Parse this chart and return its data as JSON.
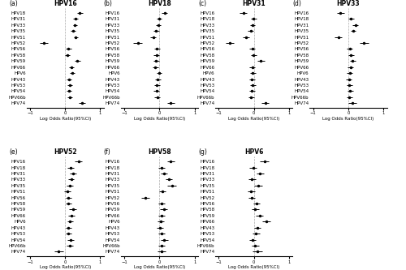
{
  "panels": [
    {
      "label": "(a)",
      "title": "HPV16",
      "data": [
        {
          "y": "HPV18",
          "mean": 0.42,
          "lo": 0.35,
          "hi": 0.5
        },
        {
          "y": "HPV31",
          "mean": 0.3,
          "lo": 0.23,
          "hi": 0.37
        },
        {
          "y": "HPV33",
          "mean": 0.28,
          "lo": 0.22,
          "hi": 0.34
        },
        {
          "y": "HPV35",
          "mean": 0.22,
          "lo": 0.15,
          "hi": 0.29
        },
        {
          "y": "HPV51",
          "mean": 0.3,
          "lo": 0.24,
          "hi": 0.36
        },
        {
          "y": "HPV52",
          "mean": -0.6,
          "lo": -0.72,
          "hi": -0.48
        },
        {
          "y": "HPV56",
          "mean": 0.1,
          "lo": 0.03,
          "hi": 0.17
        },
        {
          "y": "HPV58",
          "mean": 0.07,
          "lo": 0.0,
          "hi": 0.14
        },
        {
          "y": "HPV59",
          "mean": 0.35,
          "lo": 0.27,
          "hi": 0.43
        },
        {
          "y": "HPV66",
          "mean": 0.18,
          "lo": 0.11,
          "hi": 0.25
        },
        {
          "y": "HPV6",
          "mean": 0.2,
          "lo": 0.13,
          "hi": 0.27
        },
        {
          "y": "HPV43",
          "mean": 0.12,
          "lo": 0.05,
          "hi": 0.19
        },
        {
          "y": "HPV53",
          "mean": 0.14,
          "lo": 0.07,
          "hi": 0.21
        },
        {
          "y": "HPV54",
          "mean": 0.11,
          "lo": 0.04,
          "hi": 0.18
        },
        {
          "y": "HPV66b",
          "mean": 0.14,
          "lo": 0.07,
          "hi": 0.21
        },
        {
          "y": "HPV74",
          "mean": 0.48,
          "lo": 0.38,
          "hi": 0.58
        }
      ]
    },
    {
      "label": "(b)",
      "title": "HPV18",
      "data": [
        {
          "y": "HPV16",
          "mean": 0.15,
          "lo": 0.07,
          "hi": 0.23
        },
        {
          "y": "HPV31",
          "mean": -0.01,
          "lo": -0.09,
          "hi": 0.07
        },
        {
          "y": "HPV33",
          "mean": -0.04,
          "lo": -0.11,
          "hi": 0.03
        },
        {
          "y": "HPV35",
          "mean": -0.1,
          "lo": -0.18,
          "hi": -0.02
        },
        {
          "y": "HPV51",
          "mean": -0.18,
          "lo": -0.26,
          "hi": -0.1
        },
        {
          "y": "HPV52",
          "mean": -0.62,
          "lo": -0.74,
          "hi": -0.5
        },
        {
          "y": "HPV56",
          "mean": -0.07,
          "lo": -0.15,
          "hi": 0.01
        },
        {
          "y": "HPV58",
          "mean": -0.08,
          "lo": -0.16,
          "hi": 0.0
        },
        {
          "y": "HPV59",
          "mean": -0.1,
          "lo": -0.18,
          "hi": -0.02
        },
        {
          "y": "HPV66",
          "mean": -0.12,
          "lo": -0.2,
          "hi": -0.04
        },
        {
          "y": "HPV6",
          "mean": -0.01,
          "lo": -0.09,
          "hi": 0.07
        },
        {
          "y": "HPV43",
          "mean": -0.05,
          "lo": -0.13,
          "hi": 0.03
        },
        {
          "y": "HPV53",
          "mean": -0.07,
          "lo": -0.15,
          "hi": 0.01
        },
        {
          "y": "HPV54",
          "mean": -0.08,
          "lo": -0.16,
          "hi": 0.0
        },
        {
          "y": "HPV66b",
          "mean": -0.06,
          "lo": -0.14,
          "hi": 0.02
        },
        {
          "y": "HPV74",
          "mean": 0.32,
          "lo": 0.21,
          "hi": 0.43
        }
      ]
    },
    {
      "label": "(c)",
      "title": "HPV31",
      "data": [
        {
          "y": "HPV16",
          "mean": -0.3,
          "lo": -0.4,
          "hi": -0.2
        },
        {
          "y": "HPV18",
          "mean": -0.01,
          "lo": -0.09,
          "hi": 0.07
        },
        {
          "y": "HPV33",
          "mean": -0.04,
          "lo": -0.11,
          "hi": 0.03
        },
        {
          "y": "HPV35",
          "mean": -0.09,
          "lo": -0.17,
          "hi": -0.01
        },
        {
          "y": "HPV51",
          "mean": -0.22,
          "lo": -0.31,
          "hi": -0.13
        },
        {
          "y": "HPV52",
          "mean": -0.68,
          "lo": -0.8,
          "hi": -0.56
        },
        {
          "y": "HPV56",
          "mean": -0.04,
          "lo": -0.12,
          "hi": 0.04
        },
        {
          "y": "HPV58",
          "mean": -0.01,
          "lo": -0.09,
          "hi": 0.07
        },
        {
          "y": "HPV59",
          "mean": 0.2,
          "lo": 0.1,
          "hi": 0.3
        },
        {
          "y": "HPV66",
          "mean": -0.04,
          "lo": -0.12,
          "hi": 0.04
        },
        {
          "y": "HPV6",
          "mean": -0.03,
          "lo": -0.11,
          "hi": 0.05
        },
        {
          "y": "HPV43",
          "mean": -0.05,
          "lo": -0.13,
          "hi": 0.03
        },
        {
          "y": "HPV53",
          "mean": -0.03,
          "lo": -0.11,
          "hi": 0.05
        },
        {
          "y": "HPV54",
          "mean": -0.06,
          "lo": -0.14,
          "hi": 0.02
        },
        {
          "y": "HPV66b",
          "mean": -0.08,
          "lo": -0.16,
          "hi": 0.0
        },
        {
          "y": "HPV74",
          "mean": 0.32,
          "lo": 0.21,
          "hi": 0.43
        }
      ]
    },
    {
      "label": "(d)",
      "title": "HPV33",
      "data": [
        {
          "y": "HPV16",
          "mean": -0.22,
          "lo": -0.32,
          "hi": -0.12
        },
        {
          "y": "HPV18",
          "mean": 0.08,
          "lo": 0.0,
          "hi": 0.16
        },
        {
          "y": "HPV31",
          "mean": 0.2,
          "lo": 0.12,
          "hi": 0.28
        },
        {
          "y": "HPV35",
          "mean": 0.14,
          "lo": 0.06,
          "hi": 0.22
        },
        {
          "y": "HPV51",
          "mean": -0.28,
          "lo": -0.38,
          "hi": -0.18
        },
        {
          "y": "HPV52",
          "mean": 0.45,
          "lo": 0.32,
          "hi": 0.58
        },
        {
          "y": "HPV56",
          "mean": 0.04,
          "lo": -0.04,
          "hi": 0.12
        },
        {
          "y": "HPV58",
          "mean": 0.08,
          "lo": 0.0,
          "hi": 0.16
        },
        {
          "y": "HPV59",
          "mean": 0.12,
          "lo": 0.04,
          "hi": 0.2
        },
        {
          "y": "HPV66",
          "mean": 0.06,
          "lo": -0.02,
          "hi": 0.14
        },
        {
          "y": "HPV6",
          "mean": 0.04,
          "lo": -0.04,
          "hi": 0.12
        },
        {
          "y": "HPV43",
          "mean": 0.02,
          "lo": -0.06,
          "hi": 0.1
        },
        {
          "y": "HPV53",
          "mean": 0.03,
          "lo": -0.05,
          "hi": 0.11
        },
        {
          "y": "HPV54",
          "mean": 0.05,
          "lo": -0.03,
          "hi": 0.13
        },
        {
          "y": "HPV66b",
          "mean": 0.03,
          "lo": -0.05,
          "hi": 0.11
        },
        {
          "y": "HPV74",
          "mean": 0.12,
          "lo": 0.01,
          "hi": 0.23
        }
      ]
    },
    {
      "label": "(e)",
      "title": "HPV52",
      "data": [
        {
          "y": "HPV16",
          "mean": 0.38,
          "lo": 0.28,
          "hi": 0.48
        },
        {
          "y": "HPV18",
          "mean": 0.16,
          "lo": 0.07,
          "hi": 0.25
        },
        {
          "y": "HPV31",
          "mean": 0.22,
          "lo": 0.13,
          "hi": 0.31
        },
        {
          "y": "HPV33",
          "mean": 0.18,
          "lo": 0.1,
          "hi": 0.26
        },
        {
          "y": "HPV35",
          "mean": 0.14,
          "lo": 0.05,
          "hi": 0.23
        },
        {
          "y": "HPV51",
          "mean": 0.07,
          "lo": -0.02,
          "hi": 0.16
        },
        {
          "y": "HPV56",
          "mean": 0.1,
          "lo": 0.02,
          "hi": 0.18
        },
        {
          "y": "HPV58",
          "mean": 0.1,
          "lo": 0.02,
          "hi": 0.18
        },
        {
          "y": "HPV59",
          "mean": 0.22,
          "lo": 0.12,
          "hi": 0.32
        },
        {
          "y": "HPV66",
          "mean": 0.18,
          "lo": 0.09,
          "hi": 0.27
        },
        {
          "y": "HPV6",
          "mean": 0.14,
          "lo": 0.06,
          "hi": 0.22
        },
        {
          "y": "HPV43",
          "mean": 0.1,
          "lo": 0.02,
          "hi": 0.18
        },
        {
          "y": "HPV53",
          "mean": 0.1,
          "lo": 0.02,
          "hi": 0.18
        },
        {
          "y": "HPV54",
          "mean": 0.16,
          "lo": 0.07,
          "hi": 0.25
        },
        {
          "y": "HPV66b",
          "mean": 0.14,
          "lo": 0.05,
          "hi": 0.23
        },
        {
          "y": "HPV74",
          "mean": -0.18,
          "lo": -0.3,
          "hi": -0.06
        }
      ]
    },
    {
      "label": "(f)",
      "title": "HPV58",
      "data": [
        {
          "y": "HPV16",
          "mean": 0.32,
          "lo": 0.22,
          "hi": 0.42
        },
        {
          "y": "HPV18",
          "mean": 0.06,
          "lo": -0.03,
          "hi": 0.15
        },
        {
          "y": "HPV31",
          "mean": 0.12,
          "lo": 0.03,
          "hi": 0.21
        },
        {
          "y": "HPV33",
          "mean": 0.26,
          "lo": 0.17,
          "hi": 0.35
        },
        {
          "y": "HPV35",
          "mean": 0.35,
          "lo": 0.23,
          "hi": 0.47
        },
        {
          "y": "HPV51",
          "mean": 0.08,
          "lo": -0.01,
          "hi": 0.17
        },
        {
          "y": "HPV52",
          "mean": -0.4,
          "lo": -0.52,
          "hi": -0.28
        },
        {
          "y": "HPV56",
          "mean": 0.06,
          "lo": -0.03,
          "hi": 0.15
        },
        {
          "y": "HPV59",
          "mean": 0.12,
          "lo": 0.02,
          "hi": 0.22
        },
        {
          "y": "HPV66",
          "mean": 0.06,
          "lo": -0.03,
          "hi": 0.15
        },
        {
          "y": "HPV6",
          "mean": 0.04,
          "lo": -0.05,
          "hi": 0.13
        },
        {
          "y": "HPV43",
          "mean": 0.02,
          "lo": -0.07,
          "hi": 0.11
        },
        {
          "y": "HPV53",
          "mean": 0.06,
          "lo": -0.03,
          "hi": 0.15
        },
        {
          "y": "HPV54",
          "mean": 0.14,
          "lo": 0.04,
          "hi": 0.24
        },
        {
          "y": "HPV66b",
          "mean": 0.06,
          "lo": -0.03,
          "hi": 0.15
        },
        {
          "y": "HPV74",
          "mean": 0.06,
          "lo": -0.06,
          "hi": 0.18
        }
      ]
    },
    {
      "label": "(g)",
      "title": "HPV6",
      "data": [
        {
          "y": "HPV16",
          "mean": 0.3,
          "lo": 0.18,
          "hi": 0.42
        },
        {
          "y": "HPV18",
          "mean": -0.02,
          "lo": -0.12,
          "hi": 0.08
        },
        {
          "y": "HPV31",
          "mean": 0.18,
          "lo": 0.08,
          "hi": 0.28
        },
        {
          "y": "HPV33",
          "mean": -0.05,
          "lo": -0.15,
          "hi": 0.05
        },
        {
          "y": "HPV35",
          "mean": 0.12,
          "lo": 0.01,
          "hi": 0.23
        },
        {
          "y": "HPV51",
          "mean": -0.08,
          "lo": -0.18,
          "hi": 0.02
        },
        {
          "y": "HPV52",
          "mean": -0.06,
          "lo": -0.16,
          "hi": 0.04
        },
        {
          "y": "HPV56",
          "mean": 0.08,
          "lo": -0.02,
          "hi": 0.18
        },
        {
          "y": "HPV58",
          "mean": 0.04,
          "lo": -0.06,
          "hi": 0.14
        },
        {
          "y": "HPV59",
          "mean": 0.16,
          "lo": 0.05,
          "hi": 0.27
        },
        {
          "y": "HPV66",
          "mean": 0.35,
          "lo": 0.23,
          "hi": 0.47
        },
        {
          "y": "HPV43",
          "mean": 0.1,
          "lo": 0.0,
          "hi": 0.2
        },
        {
          "y": "HPV53",
          "mean": 0.06,
          "lo": -0.04,
          "hi": 0.16
        },
        {
          "y": "HPV54",
          "mean": -0.04,
          "lo": -0.14,
          "hi": 0.06
        },
        {
          "y": "HPV66b",
          "mean": 0.04,
          "lo": -0.06,
          "hi": 0.14
        },
        {
          "y": "HPV74",
          "mean": 0.1,
          "lo": -0.03,
          "hi": 0.23
        }
      ]
    }
  ],
  "xlim": [
    -1.1,
    1.1
  ],
  "xticks": [
    -1,
    0,
    1
  ],
  "xlabel": "Log Odds Ratio(95%CI)",
  "dot_color": "black",
  "line_color": "black",
  "vline_color": "#aaaaaa",
  "title_fontsize": 5.5,
  "label_fontsize": 4.0,
  "tick_fontsize": 3.8,
  "xlabel_fontsize": 4.0
}
